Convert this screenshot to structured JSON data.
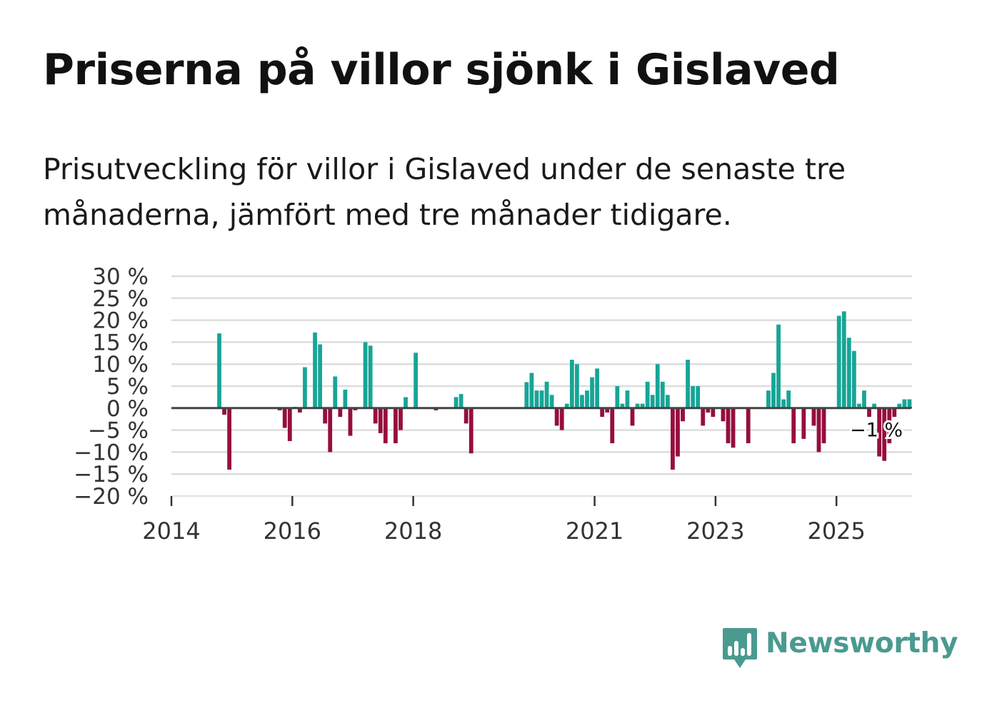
{
  "title": "Priserna på villor sjönk i Gislaved",
  "subtitle": "Prisutveckling för villor i Gislaved under de senaste tre månaderna, jämfört med tre månader tidigare.",
  "brand": {
    "name": "Newsworthy",
    "color": "#4a9a90",
    "icon": "bar-chart-speech-bubble-icon"
  },
  "colors": {
    "positive": "#17a596",
    "negative": "#960d3f",
    "grid": "#dddddd",
    "zero_line": "#444444",
    "axis_text": "#333333"
  },
  "chart_data": {
    "type": "bar",
    "title": "Priserna på villor sjönk i Gislaved",
    "xlabel": "",
    "ylabel": "",
    "ylim": [
      -20,
      30
    ],
    "yticks": [
      30,
      25,
      20,
      15,
      10,
      5,
      0,
      -5,
      -10,
      -15,
      -20
    ],
    "ytick_labels": [
      "30 %",
      "25 %",
      "20 %",
      "15 %",
      "10 %",
      "5 %",
      "0 %",
      "−5 %",
      "−10 %",
      "−15 %",
      "−20 %"
    ],
    "x_range": [
      2014,
      2026.25
    ],
    "xticks": [
      2014,
      2016,
      2018,
      2021,
      2023,
      2025
    ],
    "xtick_labels": [
      "2014",
      "2016",
      "2018",
      "2021",
      "2023",
      "2025"
    ],
    "series": [
      {
        "name": "Prisutveckling",
        "unit": "%",
        "start": 2014.0,
        "step_months": 1,
        "values": [
          null,
          null,
          null,
          null,
          null,
          null,
          null,
          null,
          null,
          17,
          -1.5,
          -14,
          null,
          null,
          null,
          null,
          null,
          null,
          null,
          null,
          null,
          -0.5,
          -4.5,
          -7.5,
          0.3,
          -1,
          9.3,
          null,
          17.2,
          14.5,
          -3.5,
          -10,
          7.2,
          -2,
          4.2,
          -6.3,
          -0.5,
          null,
          15,
          14.2,
          -3.5,
          -5.7,
          -8,
          null,
          -8,
          -5,
          2.5,
          null,
          12.6,
          null,
          null,
          null,
          -0.5,
          null,
          null,
          null,
          2.5,
          3.2,
          -3.5,
          -10.3,
          null,
          null,
          null,
          null,
          null,
          null,
          null,
          null,
          null,
          null,
          5.9,
          8,
          4,
          4,
          6,
          3,
          -4,
          -5,
          1,
          11,
          10,
          3,
          4,
          7,
          9,
          -2,
          -1,
          -8,
          5,
          1,
          4,
          -4,
          1,
          1,
          6,
          3,
          10,
          6,
          3,
          -14,
          -11,
          -3,
          11,
          5,
          5,
          -4,
          -1,
          -2,
          null,
          -3,
          -8,
          -9,
          null,
          null,
          -8,
          null,
          null,
          null,
          4,
          8,
          19,
          2,
          4,
          -8,
          null,
          -7,
          null,
          -4,
          -10,
          -8,
          null,
          null,
          21,
          22,
          16,
          13,
          1,
          4,
          -2,
          1,
          -11,
          -12,
          -8,
          -2,
          1,
          2,
          2,
          -1
        ]
      }
    ],
    "annotations": [
      {
        "label": "−1 %",
        "target": "latest"
      }
    ]
  }
}
